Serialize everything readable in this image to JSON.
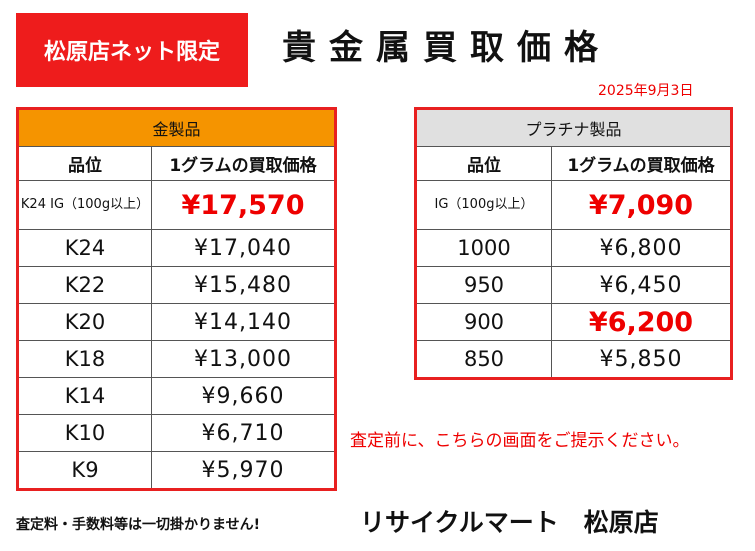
{
  "badge": "松原店ネット限定",
  "title": "貴金属買取価格",
  "date": "2025年9月3日",
  "gold": {
    "caption": "金製品",
    "col_grade": "品位",
    "col_price": "1グラムの買取価格",
    "rows": [
      {
        "grade": "K24 IG（100g以上）",
        "price": "¥17,570",
        "highlight": true
      },
      {
        "grade": "K24",
        "price": "¥17,040"
      },
      {
        "grade": "K22",
        "price": "¥15,480"
      },
      {
        "grade": "K20",
        "price": "¥14,140"
      },
      {
        "grade": "K18",
        "price": "¥13,000"
      },
      {
        "grade": "K14",
        "price": "¥9,660"
      },
      {
        "grade": "K10",
        "price": "¥6,710"
      },
      {
        "grade": "K9",
        "price": "¥5,970"
      }
    ]
  },
  "platinum": {
    "caption": "プラチナ製品",
    "col_grade": "品位",
    "col_price": "1グラムの買取価格",
    "rows": [
      {
        "grade": "IG（100g以上）",
        "price": "¥7,090",
        "highlight": true
      },
      {
        "grade": "1000",
        "price": "¥6,800"
      },
      {
        "grade": "950",
        "price": "¥6,450"
      },
      {
        "grade": "900",
        "price": "¥6,200",
        "highlight": true
      },
      {
        "grade": "850",
        "price": "¥5,850"
      }
    ]
  },
  "notice": "査定前に、こちらの画面をご提示ください。",
  "fees": "査定料・手数料等は一切掛かりません!",
  "store": "リサイクルマート　松原店",
  "colors": {
    "accent_red": "#ee1c1c",
    "gold_header": "#f59400",
    "platinum_header": "#e0e0e0"
  }
}
